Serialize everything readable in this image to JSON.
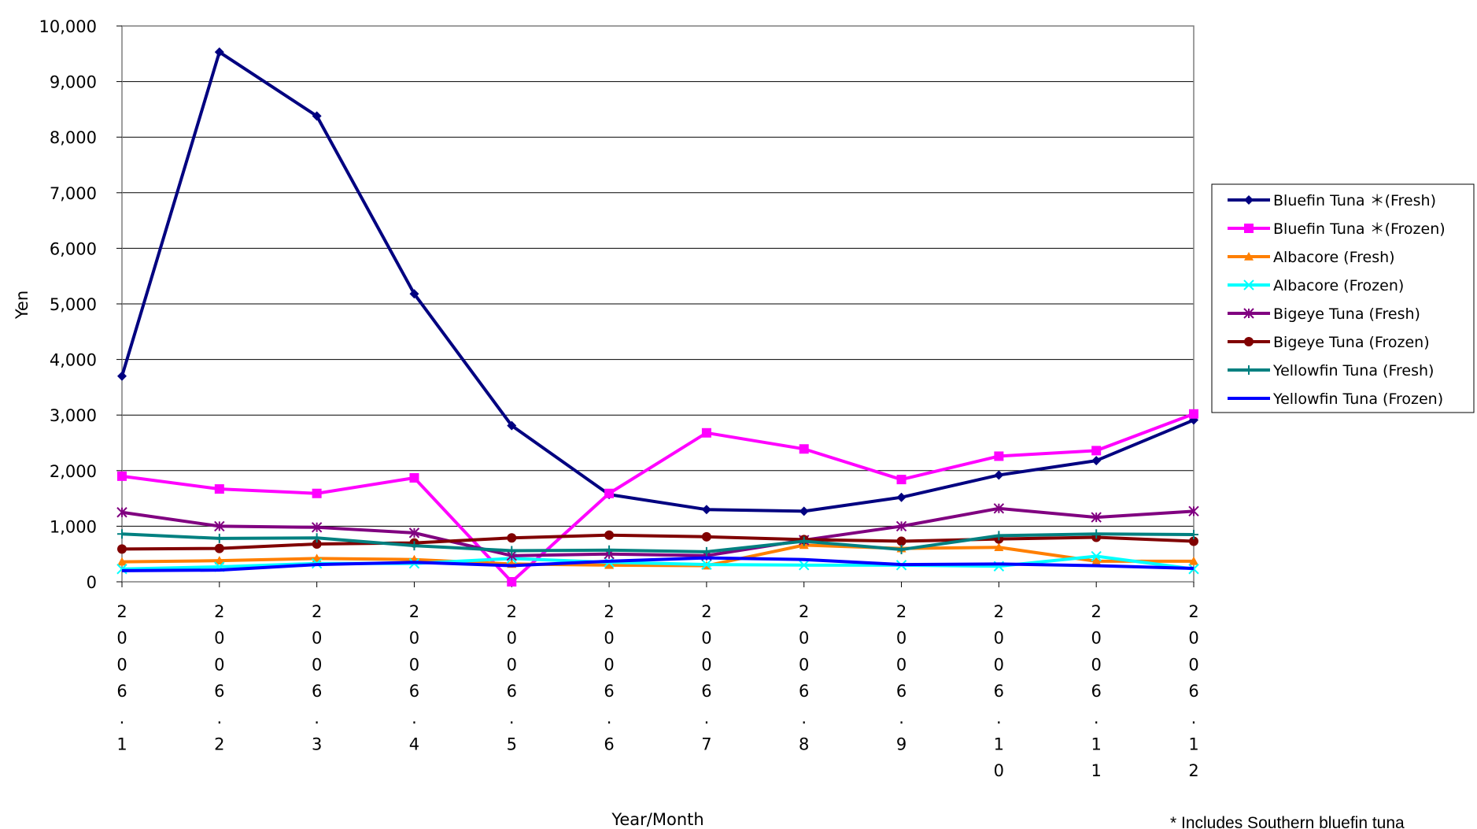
{
  "chart_data": {
    "type": "line",
    "title": "",
    "xlabel": "Year/Month",
    "ylabel": "Yen",
    "ylim": [
      0,
      10000
    ],
    "yticks": [
      "0",
      "1,000",
      "2,000",
      "3,000",
      "4,000",
      "5,000",
      "6,000",
      "7,000",
      "8,000",
      "9,000",
      "10,000"
    ],
    "categories": [
      "2006.1",
      "2006.2",
      "2006.3",
      "2006.4",
      "2006.5",
      "2006.6",
      "2006.7",
      "2006.8",
      "2006.9",
      "2006.10",
      "2006.11",
      "2006.12"
    ],
    "grid": "horizontal",
    "legend_position": "right",
    "footnote": "* Includes Southern bluefin tuna",
    "series": [
      {
        "name": "Bluefin Tuna ＊(Fresh)",
        "color": "#000080",
        "marker": "diamond",
        "values": [
          3700,
          9530,
          8380,
          5180,
          2810,
          1570,
          1300,
          1270,
          1520,
          1920,
          2180,
          2910
        ]
      },
      {
        "name": "Bluefin Tuna ＊(Frozen)",
        "color": "#FF00FF",
        "marker": "square",
        "values": [
          1900,
          1670,
          1590,
          1870,
          0,
          1590,
          2680,
          2390,
          1840,
          2260,
          2360,
          3020
        ]
      },
      {
        "name": "Albacore (Fresh)",
        "color": "#FF7F00",
        "marker": "triangle",
        "values": [
          360,
          380,
          420,
          400,
          320,
          300,
          290,
          660,
          600,
          620,
          370,
          370
        ]
      },
      {
        "name": "Albacore (Frozen)",
        "color": "#00FFFF",
        "marker": "x",
        "values": [
          230,
          270,
          330,
          330,
          420,
          350,
          310,
          300,
          300,
          280,
          460,
          230
        ]
      },
      {
        "name": "Bigeye Tuna (Fresh)",
        "color": "#800080",
        "marker": "star",
        "values": [
          1250,
          1000,
          980,
          880,
          470,
          500,
          470,
          750,
          1000,
          1320,
          1160,
          1270
        ]
      },
      {
        "name": "Bigeye Tuna (Frozen)",
        "color": "#800000",
        "marker": "circle",
        "values": [
          590,
          600,
          680,
          700,
          790,
          840,
          810,
          760,
          730,
          770,
          800,
          730
        ]
      },
      {
        "name": "Yellowfin Tuna (Fresh)",
        "color": "#008080",
        "marker": "plus",
        "values": [
          860,
          780,
          790,
          650,
          560,
          570,
          540,
          730,
          580,
          830,
          860,
          850
        ]
      },
      {
        "name": "Yellowfin Tuna (Frozen)",
        "color": "#0000FF",
        "marker": "none",
        "values": [
          200,
          210,
          310,
          350,
          290,
          370,
          430,
          400,
          310,
          320,
          290,
          240
        ]
      }
    ]
  }
}
